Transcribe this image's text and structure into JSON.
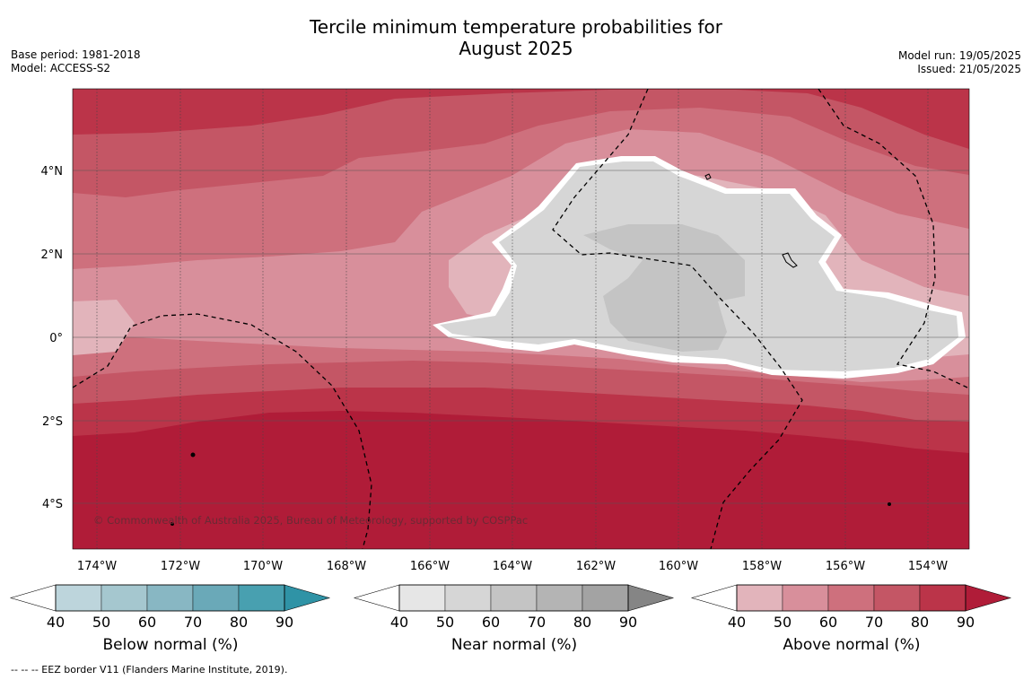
{
  "header": {
    "title_line1": "Tercile minimum temperature probabilities for",
    "title_line2": "August 2025",
    "base_period": "Base period: 1981-2018",
    "model": "Model: ACCESS-S2",
    "model_run": "Model run: 19/05/2025",
    "issued": "Issued: 21/05/2025"
  },
  "map": {
    "lat_labels": [
      "4°N",
      "2°N",
      "0°",
      "2°S",
      "4°S"
    ],
    "lon_labels": [
      "174°W",
      "172°W",
      "170°W",
      "168°W",
      "166°W",
      "164°W",
      "162°W",
      "160°W",
      "158°W",
      "156°W",
      "154°W"
    ],
    "copyright": "© Commonwealth of Australia 2025, Bureau of Meteorology, supported by COSPPac"
  },
  "legend": {
    "below": {
      "title": "Below normal (%)",
      "colors": [
        "#bdd5dc",
        "#a5c7cf",
        "#88b7c3",
        "#6aa9b8",
        "#48a0b0",
        "#2f93a6"
      ]
    },
    "near": {
      "title": "Near normal (%)",
      "colors": [
        "#e6e6e6",
        "#d6d6d6",
        "#c4c4c4",
        "#b4b4b4",
        "#a3a3a3",
        "#858585"
      ]
    },
    "above": {
      "title": "Above normal (%)",
      "colors": [
        "#e2b4bb",
        "#d88f9b",
        "#ce707d",
        "#c45665",
        "#bb3449",
        "#b01c38"
      ]
    },
    "ticks": [
      "40",
      "50",
      "60",
      "70",
      "80",
      "90"
    ]
  },
  "footer": {
    "eez": "--  --  -- EEZ border V11 (Flanders Marine Institute, 2019)."
  }
}
